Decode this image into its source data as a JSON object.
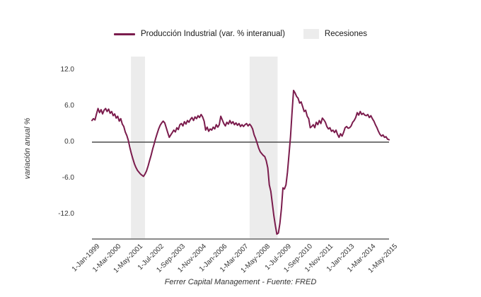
{
  "chart_data": {
    "type": "line",
    "title": "",
    "footer": "Ferrer Capital Management - Fuente: FRED",
    "legend_position": "top",
    "grid": false,
    "x": {
      "frequency": "monthly",
      "start_label": "1-Jan-1999",
      "end_label": "1-May-2015",
      "tick_labels": [
        "1-Jan-1999",
        "1-Mar-2000",
        "1-May-2001",
        "1-Jul-2002",
        "1-Sep-2003",
        "1-Nov-2004",
        "1-Jan-2006",
        "1-Mar-2007",
        "1-May-2008",
        "1-Jul-2009",
        "1-Sep-2010",
        "1-Nov-2011",
        "1-Jan-2013",
        "1-Mar-2014",
        "1-May-2015"
      ],
      "tick_month_index": [
        0,
        14,
        28,
        42,
        56,
        70,
        84,
        98,
        112,
        126,
        140,
        154,
        168,
        182,
        196
      ]
    },
    "y": {
      "label": "variación anual %",
      "tick_labels": [
        "12.0",
        "6.0",
        "0.0",
        "-6.0",
        "-12.0"
      ],
      "tick_values": [
        12,
        6,
        0,
        -6,
        -12
      ],
      "lim": [
        -16.1,
        14.2
      ],
      "zero_line": true
    },
    "series": [
      {
        "name": "Producción Industrial (var. % interanual)",
        "color": "#7b1c4d",
        "values": [
          3.6,
          3.9,
          3.7,
          4.7,
          5.6,
          4.9,
          5.4,
          4.7,
          5.3,
          5.6,
          5.1,
          5.5,
          4.8,
          5.1,
          4.4,
          4.7,
          4.0,
          4.3,
          3.5,
          3.9,
          3.0,
          2.6,
          1.7,
          1.1,
          0.3,
          -0.9,
          -1.9,
          -2.8,
          -3.6,
          -4.2,
          -4.7,
          -5.0,
          -5.3,
          -5.5,
          -5.7,
          -5.3,
          -4.8,
          -4.0,
          -3.1,
          -2.2,
          -1.2,
          -0.3,
          0.6,
          1.4,
          2.2,
          2.8,
          3.2,
          3.5,
          3.2,
          2.4,
          1.6,
          0.8,
          1.2,
          1.6,
          2.0,
          1.7,
          2.4,
          2.1,
          2.9,
          3.1,
          2.7,
          3.4,
          3.0,
          3.6,
          3.3,
          3.8,
          4.1,
          3.6,
          4.2,
          3.9,
          4.4,
          4.1,
          4.6,
          4.2,
          3.5,
          2.0,
          2.5,
          1.8,
          2.2,
          2.0,
          2.5,
          2.2,
          2.9,
          2.5,
          2.9,
          4.3,
          3.7,
          3.1,
          2.7,
          3.3,
          3.0,
          3.6,
          3.1,
          3.4,
          2.9,
          3.2,
          2.8,
          3.1,
          2.6,
          2.9,
          2.6,
          2.9,
          3.1,
          2.7,
          3.0,
          2.7,
          2.2,
          1.2,
          0.6,
          -0.2,
          -1.0,
          -1.6,
          -1.9,
          -2.2,
          -2.4,
          -3.1,
          -4.3,
          -7.1,
          -8.2,
          -10.2,
          -12.2,
          -13.9,
          -15.3,
          -15.1,
          -13.5,
          -11.0,
          -7.6,
          -7.8,
          -7.1,
          -5.0,
          -2.0,
          0.9,
          5.0,
          8.6,
          8.2,
          7.6,
          7.3,
          6.5,
          6.7,
          5.9,
          5.1,
          5.3,
          4.3,
          3.9,
          2.4,
          2.6,
          2.9,
          2.4,
          3.3,
          2.9,
          3.6,
          3.1,
          4.0,
          3.7,
          3.3,
          2.6,
          2.2,
          2.4,
          1.8,
          2.0,
          1.6,
          2.0,
          1.3,
          0.8,
          1.4,
          1.0,
          1.6,
          2.4,
          2.6,
          2.3,
          2.4,
          2.7,
          3.3,
          3.6,
          4.1,
          4.9,
          4.5,
          5.1,
          4.6,
          4.8,
          4.5,
          4.4,
          4.6,
          4.1,
          4.4,
          3.9,
          3.5,
          2.9,
          2.4,
          1.8,
          1.3,
          1.0,
          1.2,
          0.8,
          0.9,
          0.5,
          0.4
        ]
      }
    ],
    "recessions": {
      "label": "Recesiones",
      "color": "#ececec",
      "bands_month_index": [
        {
          "start": 25.7,
          "end": 35.0
        },
        {
          "start": 104.0,
          "end": 122.5
        }
      ]
    },
    "colors": {
      "zero_line": "#4c4c4c",
      "axis_line": "#8a8a8a",
      "text": "#333333"
    }
  }
}
